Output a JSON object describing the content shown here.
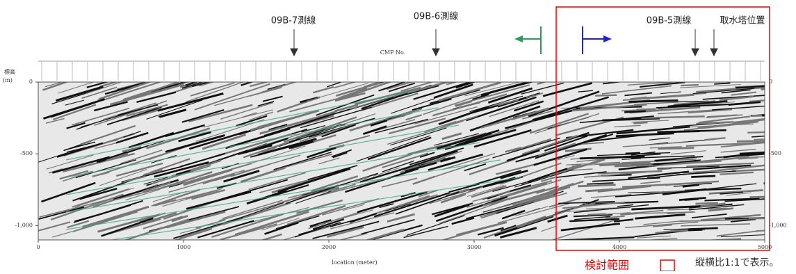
{
  "labels": {
    "line_7": "09B-7測線",
    "line_6": "09B-6測線",
    "line_5": "09B-5測線",
    "intake": "取水塔位置"
  },
  "axis": {
    "cmp": "CMP No.",
    "elevation": "標高",
    "unit": "(m)",
    "location": "location (meter)",
    "yticks": [
      {
        "value": 0,
        "label": "0"
      },
      {
        "value": -500,
        "label": "-500"
      },
      {
        "value": -1000,
        "label": "-1,000"
      }
    ],
    "xticks": [
      0,
      1000,
      2000,
      3000,
      4000,
      5000
    ]
  },
  "notes": {
    "range": "検討範囲",
    "aspect": "縦横比1:1で表示。"
  }
}
